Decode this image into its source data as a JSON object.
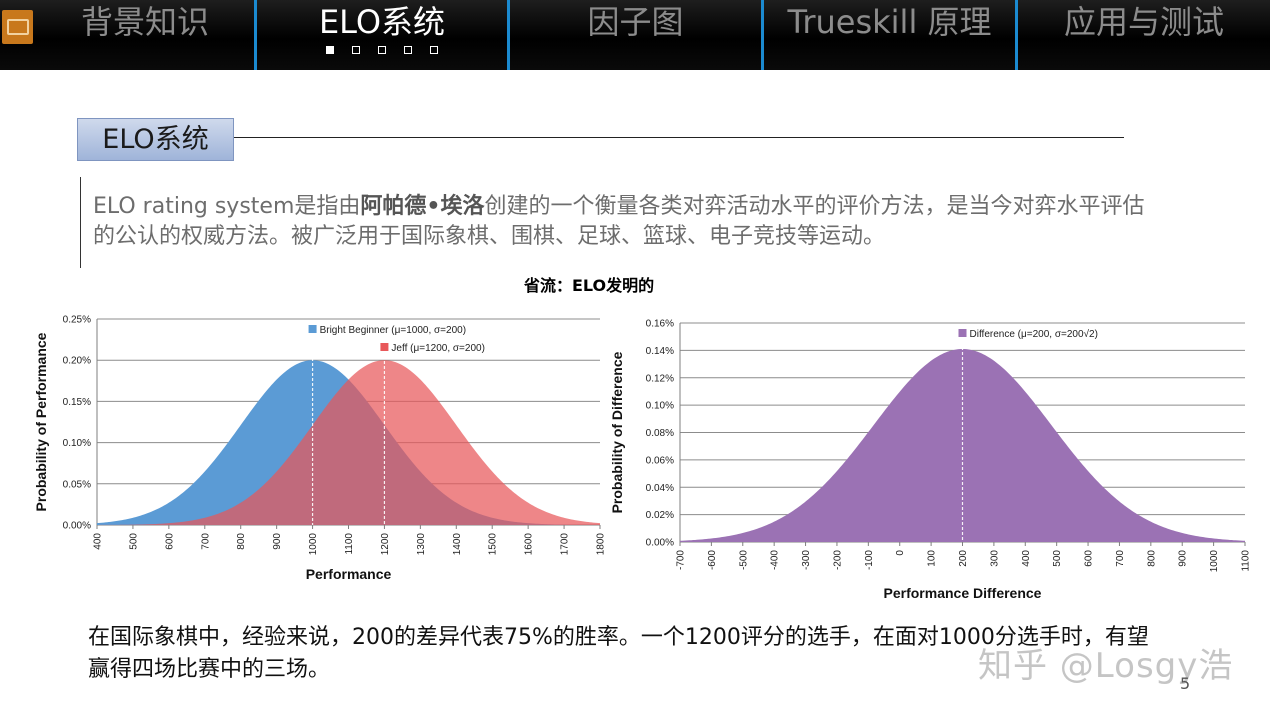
{
  "nav": {
    "tabs": [
      {
        "label": "背景知识",
        "active": false
      },
      {
        "label": "ELO系统",
        "active": true
      },
      {
        "label": "因子图",
        "active": false
      },
      {
        "label": "Trueskill 原理",
        "active": false
      },
      {
        "label": "应用与测试",
        "active": false
      }
    ],
    "dots_total": 5,
    "dots_active": 1,
    "accent": "#1b8ad0"
  },
  "section": {
    "title": "ELO系统"
  },
  "intro": {
    "part1": "ELO rating system是指由",
    "bold": "阿帕德•埃洛",
    "part2": "创建的一个衡量各类对弈活动水平的评价方法，是当今对弈水平评估的公认的权威方法。被广泛用于国际象棋、围棋、足球、篮球、电子竞技等运动。"
  },
  "note": "省流：ELO发明的",
  "bottom_text": "在国际象棋中，经验来说，200的差异代表75%的胜率。一个1200评分的选手，在面对1000分选手时，有望赢得四场比赛中的三场。",
  "watermark": "知乎 @Losgy浩",
  "page_number": "5",
  "chart_data": [
    {
      "type": "area",
      "xlabel": "Performance",
      "ylabel": "Probability of Performance",
      "xlim": [
        400,
        1800
      ],
      "ylim": [
        0,
        0.0025
      ],
      "x_ticks": [
        "400",
        "500",
        "600",
        "700",
        "800",
        "900",
        "1000",
        "1100",
        "1200",
        "1300",
        "1400",
        "1500",
        "1600",
        "1700",
        "1800"
      ],
      "y_ticks": [
        "0.00%",
        "0.05%",
        "0.10%",
        "0.15%",
        "0.20%",
        "0.25%"
      ],
      "grid": true,
      "series": [
        {
          "name": "Bright Beginner (μ=1000, σ=200)",
          "mu": 1000,
          "sigma": 200,
          "peak": 0.002,
          "color": "#5b9bd5"
        },
        {
          "name": "Jeff (μ=1200, σ=200)",
          "mu": 1200,
          "sigma": 200,
          "peak": 0.002,
          "color": "#e8585a"
        }
      ]
    },
    {
      "type": "area",
      "xlabel": "Performance Difference",
      "ylabel": "Probability of Difference",
      "xlim": [
        -700,
        1100
      ],
      "ylim": [
        0,
        0.0016
      ],
      "x_ticks": [
        "-700",
        "-600",
        "-500",
        "-400",
        "-300",
        "-200",
        "-100",
        "0",
        "100",
        "200",
        "300",
        "400",
        "500",
        "600",
        "700",
        "800",
        "900",
        "1000",
        "1100"
      ],
      "y_ticks": [
        "0.00%",
        "0.02%",
        "0.04%",
        "0.06%",
        "0.08%",
        "0.10%",
        "0.12%",
        "0.14%",
        "0.16%"
      ],
      "grid": true,
      "series": [
        {
          "name": "Difference (μ=200, σ=200√2)",
          "mu": 200,
          "sigma": 282.8,
          "peak": 0.00141,
          "color": "#9b72b4"
        }
      ]
    }
  ]
}
